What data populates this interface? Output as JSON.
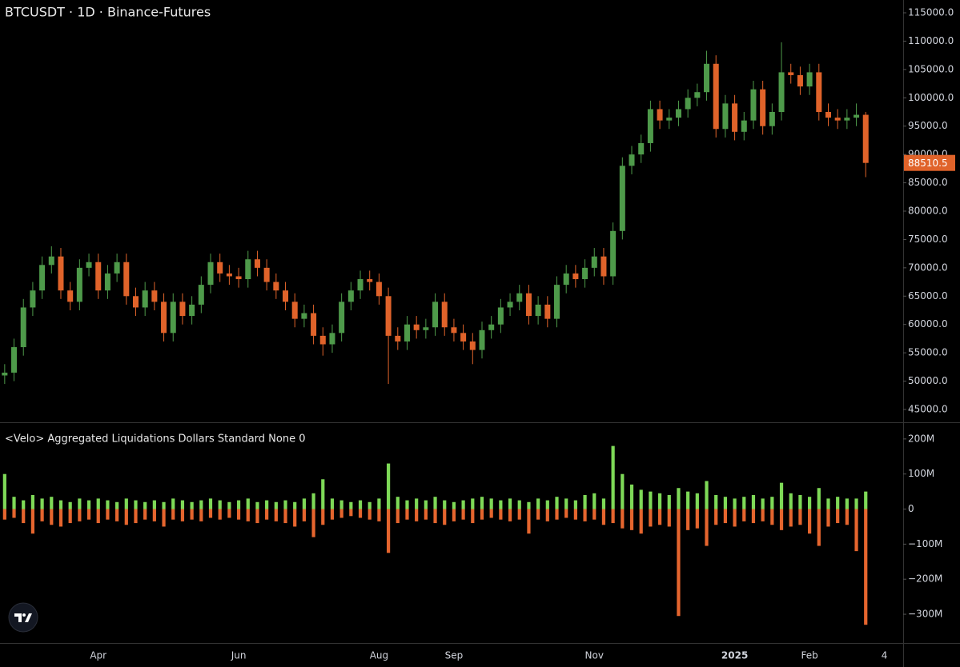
{
  "chart_data": [
    {
      "type": "candlestick",
      "title": "BTCUSDT · 1D · Binance-Futures",
      "up_color": "#4e9a4a",
      "down_color": "#e0632a",
      "categories": [
        null,
        null,
        null,
        null,
        null,
        null,
        null,
        null,
        null,
        null,
        "Apr",
        null,
        null,
        null,
        null,
        null,
        null,
        null,
        null,
        null,
        null,
        null,
        null,
        null,
        null,
        "Jun",
        null,
        null,
        null,
        null,
        null,
        null,
        null,
        null,
        null,
        null,
        null,
        null,
        null,
        null,
        "Aug",
        null,
        null,
        null,
        null,
        null,
        null,
        null,
        "Sep",
        null,
        null,
        null,
        null,
        null,
        null,
        null,
        null,
        null,
        null,
        null,
        null,
        null,
        null,
        "Nov",
        null,
        null,
        null,
        null,
        null,
        null,
        null,
        null,
        null,
        null,
        null,
        null,
        null,
        null,
        "2025",
        null,
        null,
        null,
        null,
        null,
        null,
        null,
        "Feb",
        null,
        null,
        null,
        null,
        null,
        null,
        null,
        "4"
      ],
      "open": [
        51000,
        51500,
        56000,
        63000,
        66000,
        70500,
        72000,
        66000,
        64000,
        70000,
        71000,
        66000,
        69000,
        71000,
        65000,
        63000,
        66000,
        64000,
        58500,
        64000,
        61500,
        63500,
        67000,
        71000,
        69000,
        68500,
        68000,
        71500,
        70000,
        67500,
        66000,
        64000,
        61000,
        62000,
        58000,
        56500,
        58500,
        64000,
        66000,
        68000,
        67500,
        65000,
        58000,
        57000,
        60000,
        59000,
        59500,
        64000,
        59500,
        58500,
        57000,
        55500,
        59000,
        60000,
        63000,
        64000,
        65500,
        61500,
        63500,
        61000,
        67000,
        69000,
        68000,
        70000,
        72000,
        68500,
        76500,
        88000,
        90000,
        92000,
        98000,
        96000,
        96500,
        98000,
        100000,
        101000,
        106000,
        94500,
        99000,
        94000,
        96000,
        101500,
        95000,
        97500,
        104500,
        104000,
        102000,
        104500,
        97500,
        96500,
        96000,
        96500,
        97000,
        null,
        null
      ],
      "high": [
        53000,
        57500,
        64500,
        67500,
        72000,
        73800,
        73500,
        67500,
        71500,
        72500,
        72500,
        70500,
        72500,
        72500,
        66500,
        67500,
        67500,
        65500,
        65500,
        65500,
        65000,
        68500,
        72500,
        72500,
        70500,
        70000,
        73000,
        73000,
        71500,
        69000,
        67500,
        65500,
        63500,
        63500,
        59500,
        60000,
        65500,
        67500,
        69500,
        69500,
        69000,
        66500,
        59500,
        61500,
        61500,
        61000,
        65500,
        65500,
        61000,
        60000,
        58500,
        60500,
        61500,
        64500,
        65500,
        67000,
        67000,
        65000,
        65000,
        68500,
        70500,
        70500,
        71500,
        73500,
        73500,
        78000,
        89500,
        91500,
        93500,
        99500,
        99500,
        98000,
        99500,
        101500,
        102500,
        108300,
        107500,
        100500,
        100500,
        97500,
        103000,
        103000,
        99000,
        109800,
        106000,
        105500,
        106000,
        106000,
        99000,
        98000,
        98000,
        99000,
        97500,
        null,
        null
      ],
      "low": [
        49500,
        50000,
        54500,
        61500,
        64500,
        69000,
        64500,
        62500,
        62500,
        68500,
        64500,
        64500,
        67500,
        63500,
        61500,
        61500,
        62500,
        57000,
        57000,
        60000,
        60000,
        62000,
        65500,
        67500,
        67000,
        66500,
        66500,
        68500,
        66000,
        64500,
        62500,
        59500,
        59500,
        56500,
        54500,
        55000,
        57000,
        62500,
        64500,
        66000,
        63500,
        49500,
        55500,
        55500,
        57500,
        57500,
        58000,
        58000,
        57000,
        55500,
        53000,
        54000,
        57500,
        58500,
        61500,
        62500,
        60000,
        60000,
        59500,
        59500,
        65500,
        66500,
        66500,
        68500,
        67000,
        67000,
        75000,
        86500,
        88500,
        90500,
        94500,
        94500,
        95000,
        96500,
        98500,
        99500,
        93000,
        93000,
        92500,
        92500,
        94500,
        93500,
        93500,
        96000,
        102500,
        100500,
        100500,
        96000,
        95000,
        94500,
        94500,
        95000,
        86000,
        null,
        null
      ],
      "close": [
        51500,
        56000,
        63000,
        66000,
        70500,
        72000,
        66000,
        64000,
        70000,
        71000,
        66000,
        69000,
        71000,
        65000,
        63000,
        66000,
        64000,
        58500,
        64000,
        61500,
        63500,
        67000,
        71000,
        69000,
        68500,
        68000,
        71500,
        70000,
        67500,
        66000,
        64000,
        61000,
        62000,
        58000,
        56500,
        58500,
        64000,
        66000,
        68000,
        67500,
        65000,
        58000,
        57000,
        60000,
        59000,
        59500,
        64000,
        59500,
        58500,
        57000,
        55500,
        59000,
        60000,
        63000,
        64000,
        65500,
        61500,
        63500,
        61000,
        67000,
        69000,
        68000,
        70000,
        72000,
        68500,
        76500,
        88000,
        90000,
        92000,
        98000,
        96000,
        96500,
        98000,
        100000,
        101000,
        106000,
        94500,
        99000,
        94000,
        96000,
        101500,
        95000,
        97500,
        104500,
        104000,
        102000,
        104500,
        97500,
        96500,
        96000,
        96500,
        97000,
        88510.5,
        null,
        null
      ],
      "ylim": [
        42740,
        117260
      ],
      "yticks": [
        {
          "value": 45000,
          "label": "45000.0"
        },
        {
          "value": 50000,
          "label": "50000.0"
        },
        {
          "value": 55000,
          "label": "55000.0"
        },
        {
          "value": 60000,
          "label": "60000.0"
        },
        {
          "value": 65000,
          "label": "65000.0"
        },
        {
          "value": 70000,
          "label": "70000.0"
        },
        {
          "value": 75000,
          "label": "75000.0"
        },
        {
          "value": 80000,
          "label": "80000.0"
        },
        {
          "value": 85000,
          "label": "85000.0"
        },
        {
          "value": 90000,
          "label": "90000.0"
        },
        {
          "value": 95000,
          "label": "95000.0"
        },
        {
          "value": 100000,
          "label": "100000.0"
        },
        {
          "value": 105000,
          "label": "105000.0"
        },
        {
          "value": 110000,
          "label": "110000.0"
        },
        {
          "value": 115000,
          "label": "115000.0"
        }
      ]
    },
    {
      "type": "bar",
      "title": "<Velo> Aggregated Liquidations Dollars Standard None 0",
      "series": [
        {
          "color": "#7ed957",
          "values": [
            100,
            35,
            25,
            40,
            30,
            35,
            25,
            20,
            30,
            25,
            30,
            25,
            20,
            30,
            25,
            20,
            25,
            20,
            30,
            25,
            20,
            25,
            30,
            25,
            20,
            25,
            30,
            20,
            25,
            20,
            25,
            20,
            30,
            45,
            85,
            30,
            25,
            20,
            25,
            20,
            30,
            130,
            35,
            25,
            30,
            25,
            35,
            25,
            20,
            25,
            30,
            35,
            30,
            25,
            30,
            25,
            20,
            30,
            25,
            35,
            30,
            25,
            40,
            45,
            30,
            180,
            100,
            70,
            55,
            50,
            45,
            40,
            60,
            50,
            45,
            80,
            40,
            35,
            30,
            35,
            40,
            30,
            35,
            75,
            45,
            40,
            35,
            60,
            30,
            35,
            30,
            30,
            50,
            null,
            null
          ]
        },
        {
          "color": "#e5652e",
          "values": [
            -30,
            -25,
            -40,
            -70,
            -35,
            -45,
            -50,
            -40,
            -35,
            -30,
            -40,
            -30,
            -35,
            -45,
            -40,
            -30,
            -35,
            -50,
            -30,
            -35,
            -30,
            -35,
            -25,
            -30,
            -25,
            -30,
            -35,
            -40,
            -30,
            -35,
            -40,
            -50,
            -35,
            -80,
            -45,
            -30,
            -25,
            -20,
            -25,
            -30,
            -35,
            -125,
            -40,
            -30,
            -35,
            -30,
            -40,
            -45,
            -35,
            -30,
            -40,
            -30,
            -25,
            -30,
            -35,
            -30,
            -70,
            -30,
            -35,
            -30,
            -25,
            -30,
            -35,
            -30,
            -45,
            -40,
            -55,
            -60,
            -70,
            -50,
            -45,
            -50,
            -305,
            -60,
            -55,
            -105,
            -45,
            -40,
            -50,
            -35,
            -40,
            -35,
            -45,
            -60,
            -50,
            -45,
            -70,
            -105,
            -50,
            -40,
            -45,
            -120,
            -330,
            null,
            null
          ]
        }
      ],
      "ylim": [
        -382,
        243
      ],
      "yticks": [
        {
          "value": 200,
          "label": "200M"
        },
        {
          "value": 100,
          "label": "100M"
        },
        0,
        {
          "value": -100,
          "label": "−100M"
        },
        {
          "value": -200,
          "label": "−200M"
        },
        {
          "value": -300,
          "label": "−300M"
        }
      ]
    }
  ]
}
